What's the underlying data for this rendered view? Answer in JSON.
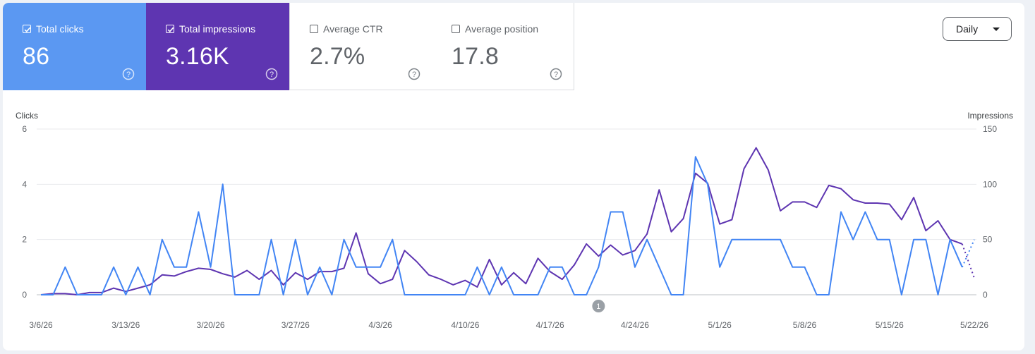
{
  "metrics": {
    "clicks": {
      "label": "Total clicks",
      "value": "86",
      "checked": true,
      "color": "#5b98f2"
    },
    "impressions": {
      "label": "Total impressions",
      "value": "3.16K",
      "checked": true,
      "color": "#5e35b1"
    },
    "ctr": {
      "label": "Average CTR",
      "value": "2.7%",
      "checked": false
    },
    "position": {
      "label": "Average position",
      "value": "17.8",
      "checked": false
    }
  },
  "granularity": {
    "label": "Daily"
  },
  "annotation": {
    "label": "1"
  },
  "chart_data": {
    "type": "line",
    "left_axis": {
      "label": "Clicks",
      "ticks": [
        "0",
        "2",
        "4",
        "6"
      ],
      "range": [
        0,
        6
      ]
    },
    "right_axis": {
      "label": "Impressions",
      "ticks": [
        "0",
        "50",
        "100",
        "150"
      ],
      "range": [
        0,
        150
      ]
    },
    "x_tick_labels": [
      "3/6/26",
      "3/13/26",
      "3/20/26",
      "3/27/26",
      "4/3/26",
      "4/10/26",
      "4/17/26",
      "4/24/26",
      "5/1/26",
      "5/8/26",
      "5/15/26",
      "5/22/26"
    ],
    "x_tick_indices": [
      0,
      7,
      14,
      21,
      28,
      35,
      42,
      49,
      56,
      63,
      70,
      77
    ],
    "grid": true,
    "annotation_index": 46,
    "series": [
      {
        "name": "Clicks",
        "axis": "left",
        "color": "#4285f4",
        "values": [
          0,
          0,
          1,
          0,
          0,
          0,
          1,
          0,
          1,
          0,
          2,
          1,
          1,
          3,
          1,
          4,
          0,
          0,
          0,
          2,
          0,
          2,
          0,
          1,
          0,
          2,
          1,
          1,
          1,
          2,
          0,
          0,
          0,
          0,
          0,
          0,
          1,
          0,
          1,
          0,
          0,
          0,
          1,
          1,
          0,
          0,
          1,
          3,
          3,
          1,
          2,
          1,
          0,
          0,
          5,
          4,
          1,
          2,
          2,
          2,
          2,
          2,
          1,
          1,
          0,
          0,
          3,
          2,
          3,
          2,
          2,
          0,
          2,
          2,
          0,
          2,
          1,
          2
        ],
        "dotted_tail_from": 76
      },
      {
        "name": "Impressions",
        "axis": "right",
        "color": "#5e35b1",
        "values": [
          0,
          1,
          1,
          0,
          2,
          2,
          6,
          3,
          6,
          9,
          18,
          17,
          21,
          24,
          23,
          19,
          16,
          22,
          14,
          22,
          9,
          20,
          14,
          21,
          21,
          24,
          56,
          19,
          10,
          14,
          40,
          30,
          18,
          14,
          9,
          13,
          7,
          32,
          9,
          20,
          10,
          33,
          21,
          14,
          27,
          46,
          35,
          45,
          36,
          40,
          55,
          95,
          57,
          69,
          110,
          101,
          64,
          68,
          114,
          133,
          113,
          76,
          84,
          84,
          79,
          99,
          96,
          86,
          83,
          83,
          82,
          68,
          88,
          58,
          67,
          50,
          46,
          15
        ],
        "dotted_tail_from": 76
      }
    ]
  }
}
